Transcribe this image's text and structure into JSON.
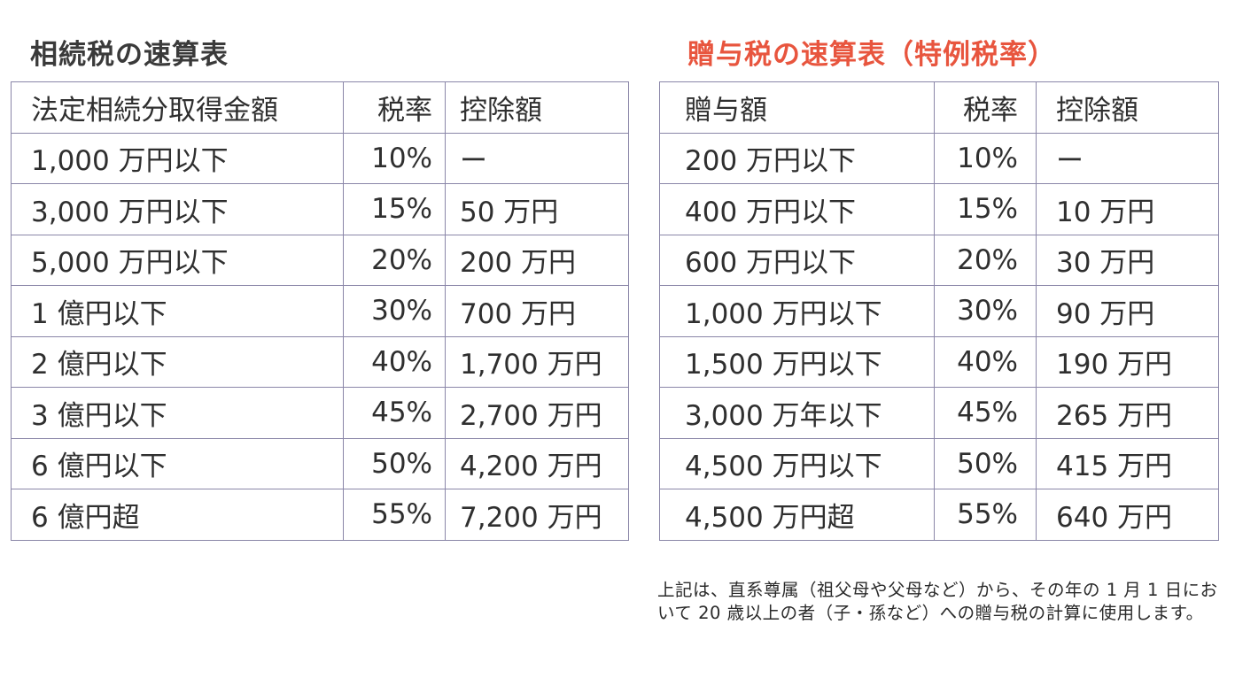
{
  "inheritance": {
    "title": "相続税の速算表",
    "headers": [
      "法定相続分取得金額",
      "税率",
      "控除額"
    ],
    "rows": [
      [
        "1,000 万円以下",
        "10%",
        "ー"
      ],
      [
        "3,000 万円以下",
        "15%",
        "50 万円"
      ],
      [
        "5,000 万円以下",
        "20%",
        "200 万円"
      ],
      [
        "1 億円以下",
        "30%",
        "700 万円"
      ],
      [
        "2 億円以下",
        "40%",
        "1,700 万円"
      ],
      [
        "3 億円以下",
        "45%",
        "2,700 万円"
      ],
      [
        "6 億円以下",
        "50%",
        "4,200 万円"
      ],
      [
        "6 億円超",
        "55%",
        "7,200 万円"
      ]
    ]
  },
  "gift": {
    "title": "贈与税の速算表（特例税率）",
    "headers": [
      "贈与額",
      "税率",
      "控除額"
    ],
    "rows": [
      [
        "200 万円以下",
        "10%",
        "ー"
      ],
      [
        "400 万円以下",
        "15%",
        "10 万円"
      ],
      [
        "600 万円以下",
        "20%",
        "30 万円"
      ],
      [
        "1,000 万円以下",
        "30%",
        "90 万円"
      ],
      [
        "1,500 万円以下",
        "40%",
        "190 万円"
      ],
      [
        "3,000 万年以下",
        "45%",
        "265 万円"
      ],
      [
        "4,500 万円以下",
        "50%",
        "415 万円"
      ],
      [
        "4,500 万円超",
        "55%",
        "640 万円"
      ]
    ],
    "note": "上記は、直系尊属（祖父母や父母など）から、その年の 1 月 1 日において 20 歳以上の者（子・孫など）への贈与税の計算に使用します。"
  },
  "colors": {
    "left_title": "#3a3a3a",
    "right_title": "#e8553e",
    "table_border": "#8a86a8"
  }
}
